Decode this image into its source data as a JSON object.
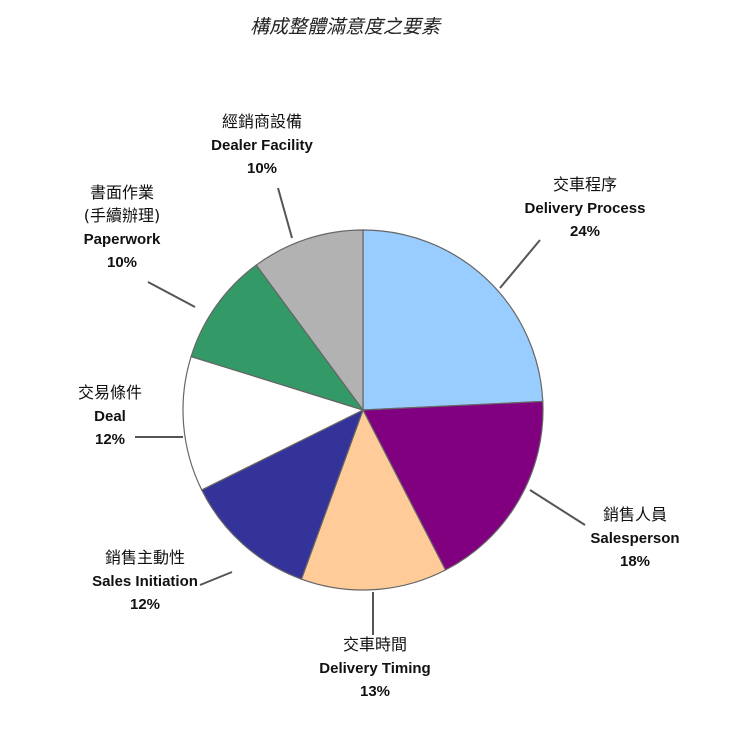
{
  "chart_data": {
    "type": "pie",
    "title": "構成整體滿意度之要素",
    "start_angle_deg": 0,
    "direction": "clockwise",
    "slices": [
      {
        "label_zh": [
          "交車程序"
        ],
        "label_en": "Delivery Process",
        "value": 24,
        "pct_label": "24%",
        "color": "#99ccff"
      },
      {
        "label_zh": [
          "銷售人員"
        ],
        "label_en": "Salesperson",
        "value": 18,
        "pct_label": "18%",
        "color": "#800080"
      },
      {
        "label_zh": [
          "交車時間"
        ],
        "label_en": "Delivery Timing",
        "value": 13,
        "pct_label": "13%",
        "color": "#ffcc99"
      },
      {
        "label_zh": [
          "銷售主動性"
        ],
        "label_en": "Sales Initiation",
        "value": 12,
        "pct_label": "12%",
        "color": "#333399"
      },
      {
        "label_zh": [
          "交易條件"
        ],
        "label_en": "Deal",
        "value": 12,
        "pct_label": "12%",
        "color": "#ffffff"
      },
      {
        "label_zh": [
          "書面作業",
          "(手續辦理)"
        ],
        "label_en": "Paperwork",
        "value": 10,
        "pct_label": "10%",
        "color": "#339966"
      },
      {
        "label_zh": [
          "經銷商設備"
        ],
        "label_en": "Dealer Facility",
        "value": 10,
        "pct_label": "10%",
        "color": "#b2b2b2"
      }
    ]
  }
}
